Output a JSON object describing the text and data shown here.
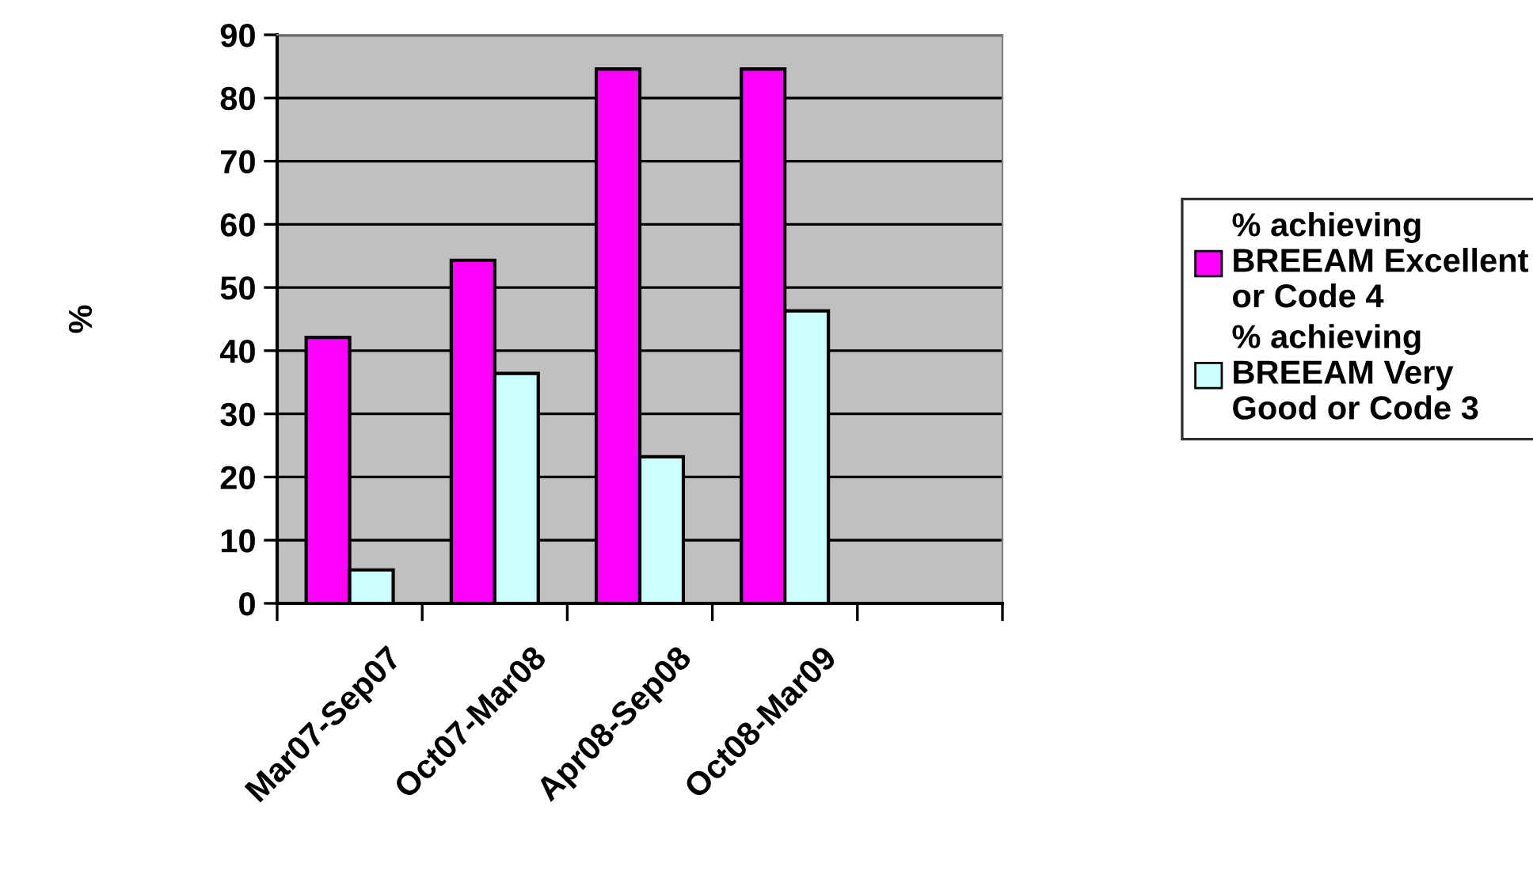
{
  "chart_data": {
    "type": "bar",
    "ylabel": "%",
    "categories": [
      "Mar07-Sep07",
      "Oct07-Mar08",
      "Apr08-Sep08",
      "Oct08-Mar09",
      null
    ],
    "series": [
      {
        "name": "% achieving\nBREEAM Excellent\nor Code 4",
        "color": "#ff00ff",
        "values": [
          42.1,
          54.3,
          84.6,
          84.6,
          null
        ]
      },
      {
        "name": "% achieving\nBREEAM Very\nGood or Code 3",
        "color": "#ccffff",
        "values": [
          5.3,
          36.4,
          23.2,
          46.3,
          null
        ]
      }
    ],
    "ylim": [
      0,
      90
    ],
    "yticks": [
      0,
      10,
      20,
      30,
      40,
      50,
      60,
      70,
      80,
      90
    ],
    "grid": "y",
    "legend": "right"
  }
}
